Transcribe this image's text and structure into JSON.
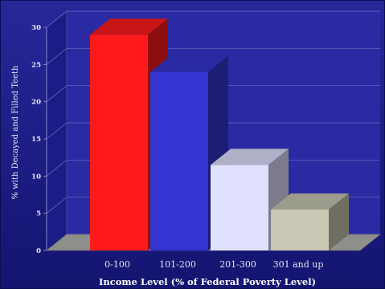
{
  "chart_data": {
    "type": "bar",
    "categories": [
      "0-100",
      "101-200",
      "201-300",
      "301 and up"
    ],
    "values": [
      29,
      24,
      11.5,
      5.5
    ],
    "xlabel": "Income Level (% of Federal Poverty Level)",
    "ylabel": "% with Decayed and Filled Teeth",
    "ylim": [
      0,
      30
    ],
    "yticks": [
      0,
      5,
      10,
      15,
      20,
      25,
      30
    ],
    "grid": true,
    "style": "3d",
    "colors": [
      "#ff1a1a",
      "#3434d2",
      "#e0e0ff",
      "#c8c8b4"
    ],
    "background": "#1e1e8c"
  }
}
